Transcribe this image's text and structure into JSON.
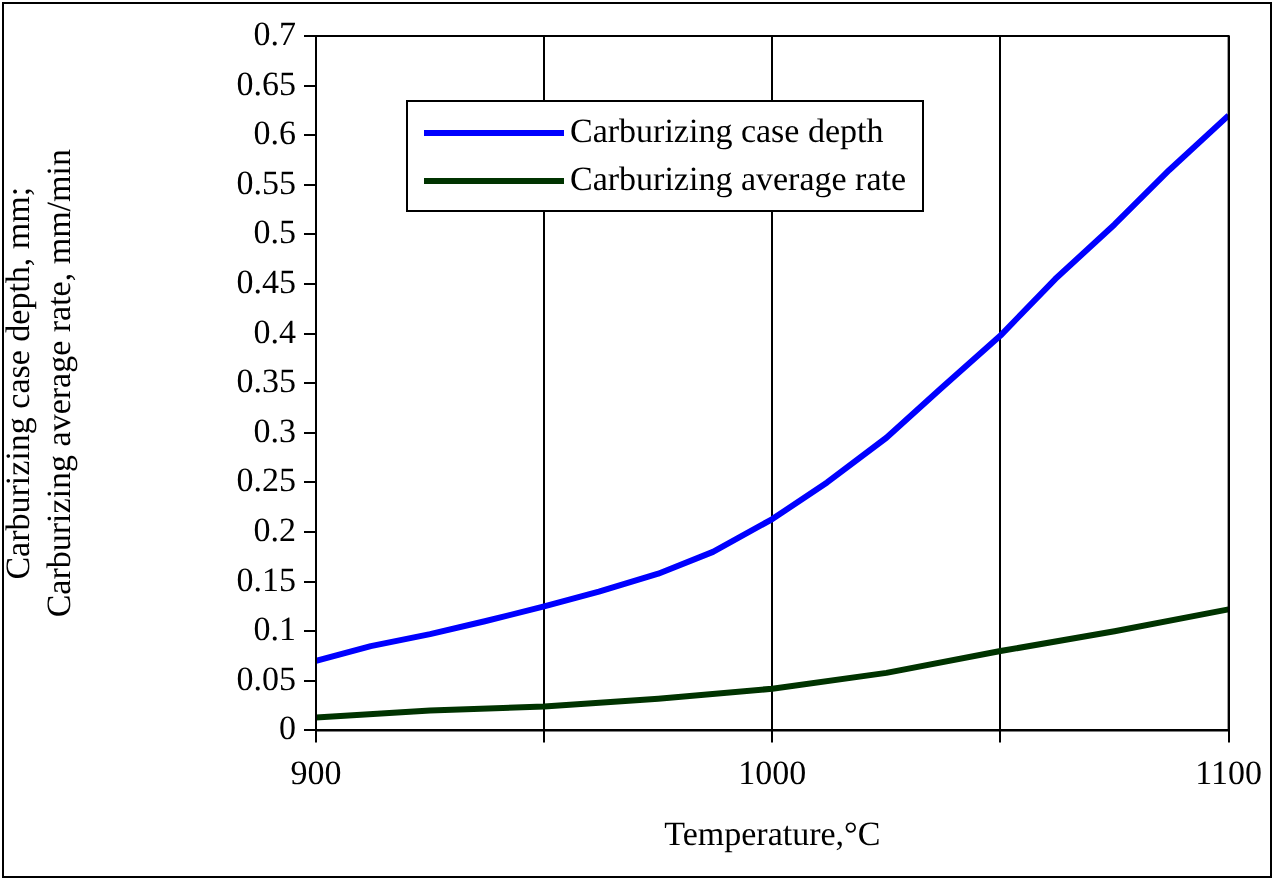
{
  "chart_data": {
    "type": "line",
    "xlabel": "Temperature,°C",
    "ylabel": "Carburizing case depth, mm;\nCarburizing average rate, mm/min",
    "xlim": [
      900,
      1100
    ],
    "xticks": [
      900,
      {
        "value": 950,
        "label": null
      },
      1000,
      {
        "value": 1050,
        "label": null
      },
      1100
    ],
    "ylim": [
      0,
      0.7
    ],
    "yticks": [
      0,
      0.05,
      0.1,
      0.15,
      0.2,
      0.25,
      0.3,
      0.35,
      0.4,
      0.45,
      0.5,
      0.55,
      0.6,
      0.65,
      0.7
    ],
    "grid": "x",
    "legend": "top left",
    "marker": "none",
    "line_style": "solid",
    "series": [
      {
        "name": "Carburizing case depth",
        "color": "#0000ff",
        "x": [
          900,
          912,
          925,
          937,
          950,
          962,
          975,
          987,
          1000,
          1012,
          1025,
          1037,
          1050,
          1062,
          1075,
          1087,
          1100
        ],
        "values": [
          0.07,
          0.085,
          0.097,
          0.11,
          0.125,
          0.14,
          0.158,
          0.18,
          0.213,
          0.25,
          0.295,
          0.345,
          0.398,
          0.455,
          0.51,
          0.565,
          0.62
        ]
      },
      {
        "name": "Carburizing average rate",
        "color": "#003300",
        "x": [
          900,
          925,
          950,
          975,
          1000,
          1025,
          1050,
          1075,
          1100
        ],
        "values": [
          0.013,
          0.02,
          0.024,
          0.032,
          0.042,
          0.058,
          0.08,
          0.1,
          0.122
        ]
      }
    ]
  }
}
